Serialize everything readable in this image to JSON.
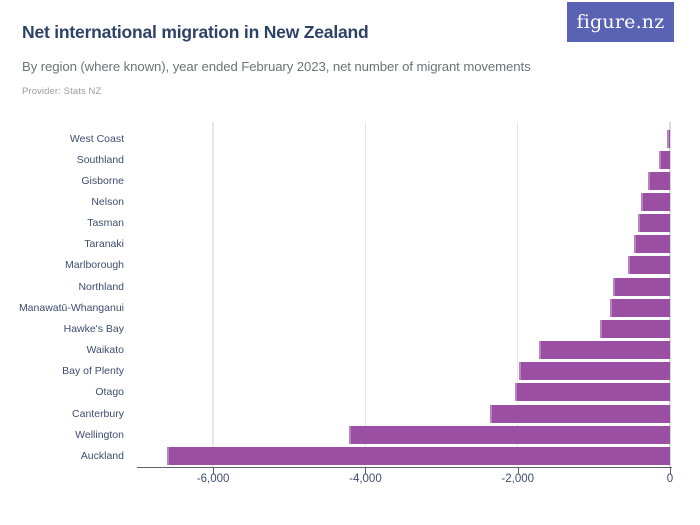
{
  "header": {
    "title": "Net international migration in New Zealand",
    "subtitle": "By region (where known), year ended February 2023, net number of migrant movements",
    "provider": "Provider: Stats NZ",
    "logo_text": "figure.nz"
  },
  "colors": {
    "bar": "#9a4fa3",
    "bar_edge": "#b982c1",
    "logo_bg": "#5a62b4",
    "title": "#2e4268",
    "subtitle": "#6f7277",
    "provider": "#9b9c9f",
    "axis_line": "#60606a",
    "axis_text": "#3e4c6e",
    "gridline": "#e7e7ea",
    "zero_line": "#d9d9de"
  },
  "chart_data": {
    "type": "bar",
    "orientation": "horizontal",
    "title": "Net international migration in New Zealand",
    "subtitle": "By region (where known), year ended February 2023, net number of migrant movements",
    "xlabel": "",
    "ylabel": "",
    "grid": "vertical",
    "legend": "none",
    "xlim": [
      -7000,
      0
    ],
    "xticks": [
      -6000,
      -4000,
      -2000,
      0
    ],
    "xtick_labels": [
      "-6,000",
      "-4,000",
      "-2,000",
      "0"
    ],
    "categories": [
      "West Coast",
      "Southland",
      "Gisborne",
      "Nelson",
      "Tasman",
      "Taranaki",
      "Marlborough",
      "Northland",
      "Manawatū-Whanganui",
      "Hawke's Bay",
      "Waikato",
      "Bay of Plenty",
      "Otago",
      "Canterbury",
      "Wellington",
      "Auckland"
    ],
    "values": [
      -45,
      -150,
      -285,
      -385,
      -420,
      -470,
      -550,
      -750,
      -790,
      -920,
      -1720,
      -1980,
      -2030,
      -2370,
      -4220,
      -6600
    ]
  }
}
